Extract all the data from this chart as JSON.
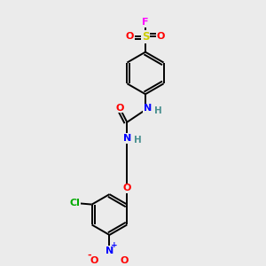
{
  "bg_color": "#ebebeb",
  "atom_colors": {
    "C": "#000000",
    "H": "#4a9090",
    "N": "#0000ff",
    "O": "#ff0000",
    "S": "#cccc00",
    "F": "#ff00ff",
    "Cl": "#00aa00"
  },
  "bond_color": "#000000",
  "bond_width": 1.4,
  "fig_size": [
    3.0,
    3.0
  ],
  "dpi": 100,
  "xlim": [
    0,
    10
  ],
  "ylim": [
    0,
    10
  ]
}
